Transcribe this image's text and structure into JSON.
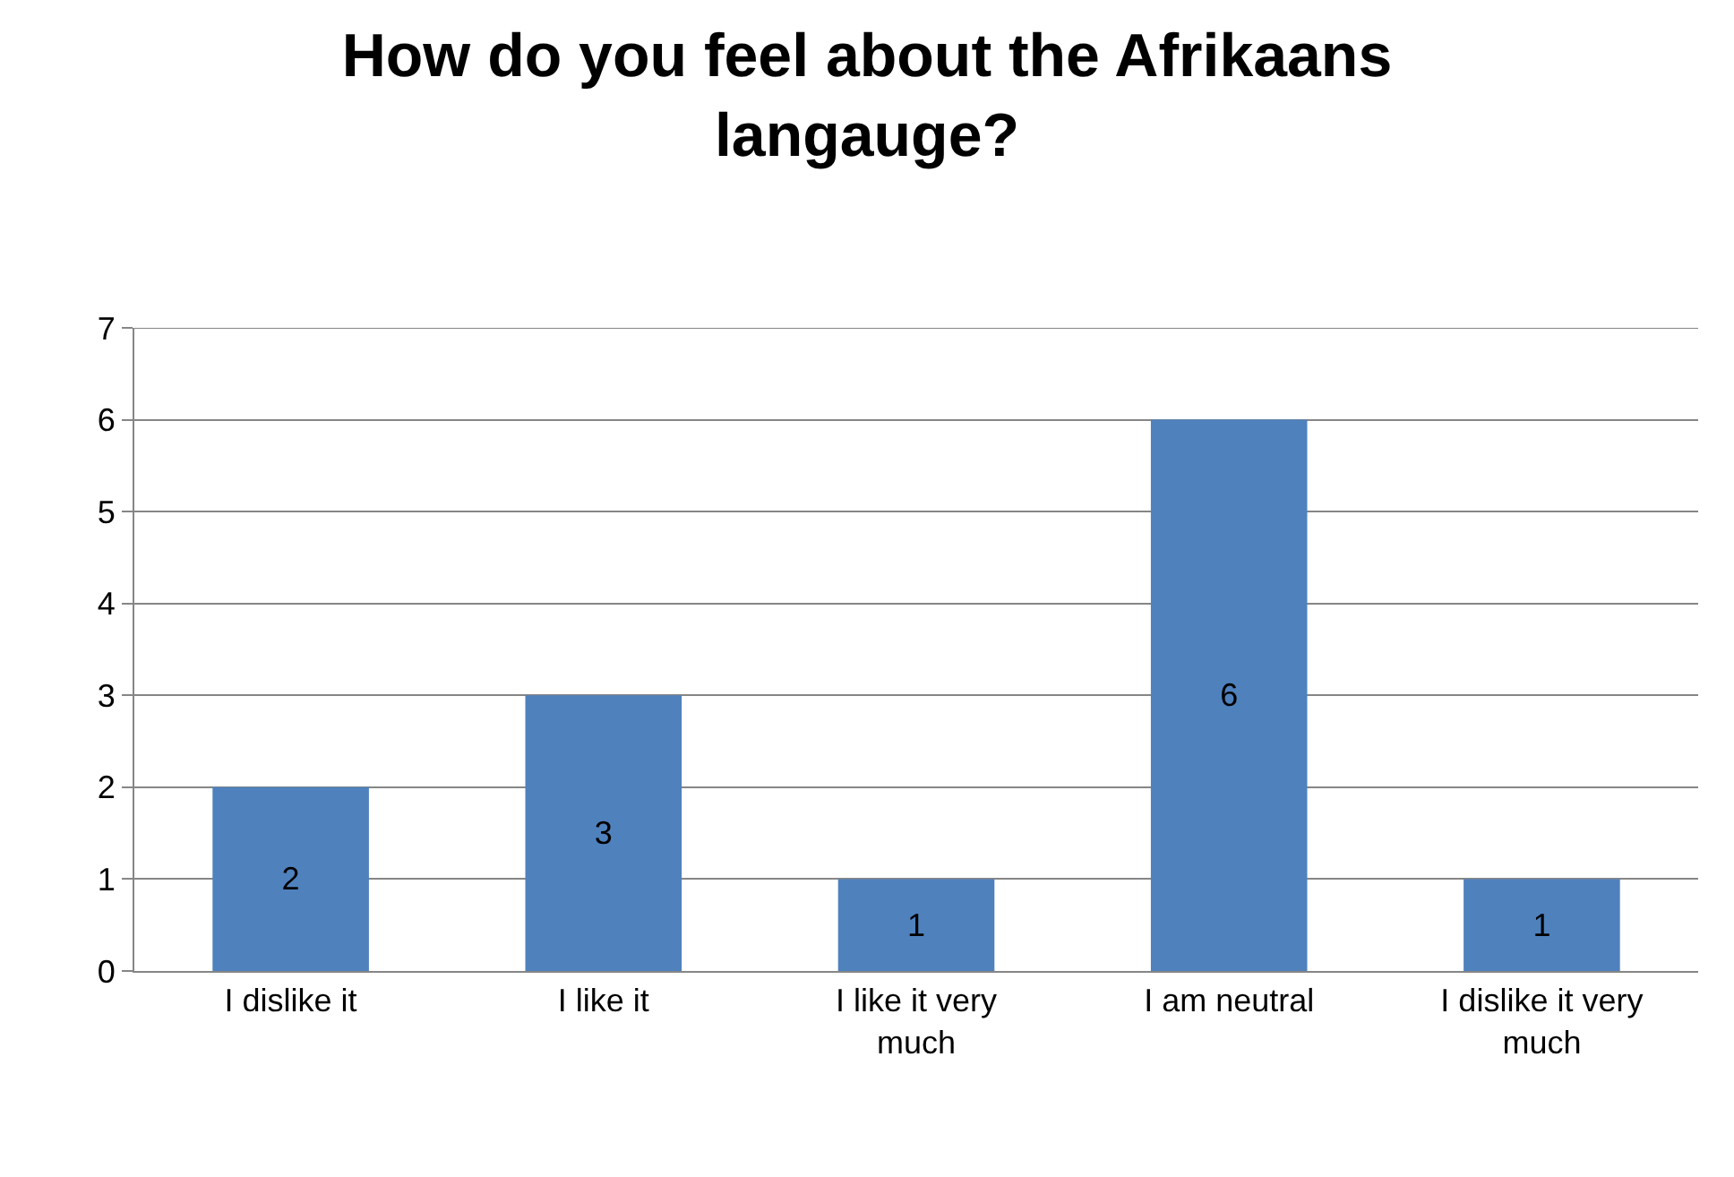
{
  "chart_data": {
    "type": "bar",
    "title": "How do you feel about the Afrikaans langauge?",
    "categories": [
      "I dislike it",
      "I like it",
      "I like it very much",
      "I am neutral",
      "I dislike it very much"
    ],
    "values": [
      2,
      3,
      1,
      6,
      1
    ],
    "color": "#4f81bd",
    "ylim": [
      0,
      7
    ],
    "yticks": [
      0,
      1,
      2,
      3,
      4,
      5,
      6,
      7
    ],
    "grid": "y",
    "data_labels": true
  }
}
